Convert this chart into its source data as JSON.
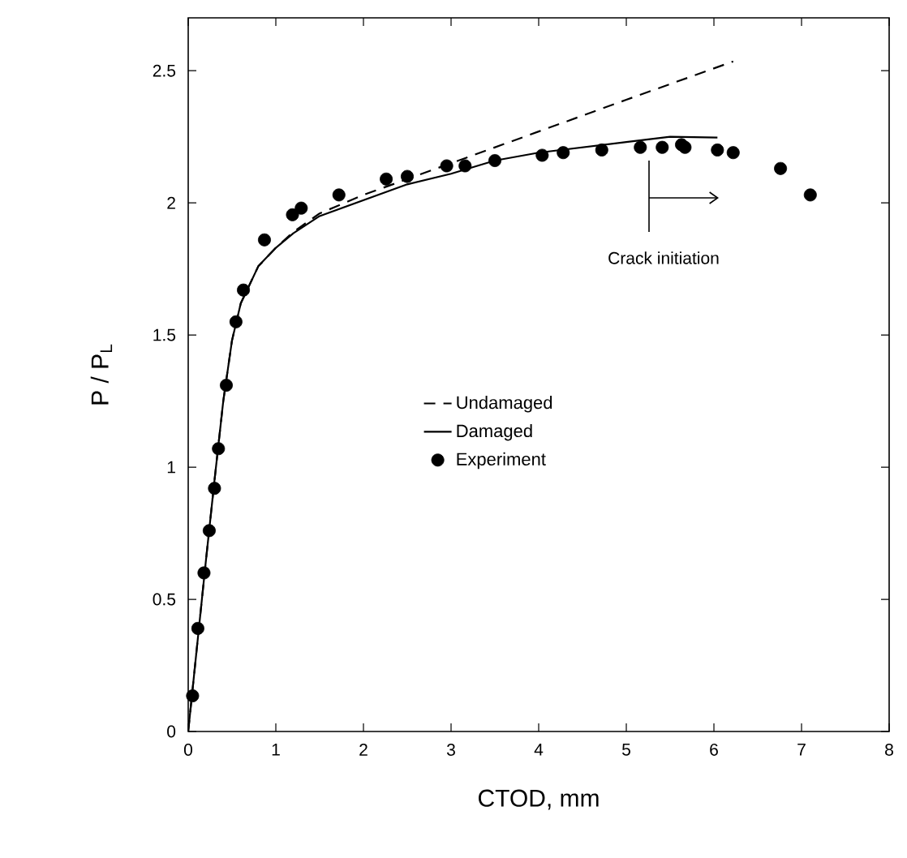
{
  "chart_data": {
    "type": "line",
    "xlabel": "CTOD, mm",
    "ylabel": "P / P$_{L}$",
    "xlim": [
      0,
      8
    ],
    "ylim": [
      0,
      2.7
    ],
    "xticks": [
      0,
      1,
      2,
      3,
      4,
      5,
      6,
      7,
      8
    ],
    "yticks": [
      0,
      0.5,
      1,
      1.5,
      2,
      2.5
    ],
    "grid": false,
    "legend": "center",
    "annotations": [
      "Crack initiation"
    ],
    "series": [
      {
        "name": "Undamaged",
        "type": "line",
        "color": "#000000",
        "line_style": "dashed",
        "marker": "none",
        "x": [
          0,
          0.1,
          0.2,
          0.3,
          0.4,
          0.5,
          0.6,
          0.8,
          1.0,
          1.2,
          1.5,
          2,
          3,
          4,
          5,
          6.22
        ],
        "values": [
          0,
          0.32,
          0.64,
          0.95,
          1.25,
          1.48,
          1.62,
          1.76,
          1.83,
          1.89,
          1.96,
          2.03,
          2.15,
          2.27,
          2.39,
          2.535
        ]
      },
      {
        "name": "Damaged",
        "type": "line",
        "color": "#000000",
        "line_style": "solid",
        "marker": "none",
        "x": [
          0,
          0.1,
          0.2,
          0.3,
          0.4,
          0.5,
          0.6,
          0.8,
          1.0,
          1.2,
          1.5,
          2,
          2.5,
          3,
          3.5,
          4,
          5,
          5.5,
          6.04
        ],
        "values": [
          0,
          0.32,
          0.64,
          0.95,
          1.25,
          1.48,
          1.62,
          1.76,
          1.83,
          1.885,
          1.95,
          2.01,
          2.07,
          2.11,
          2.16,
          2.19,
          2.23,
          2.25,
          2.247
        ]
      },
      {
        "name": "Experiment",
        "type": "scatter",
        "color": "#000000",
        "marker": "circle",
        "x": [
          0.05,
          0.11,
          0.18,
          0.24,
          0.3,
          0.345,
          0.435,
          0.545,
          0.63,
          0.87,
          1.19,
          1.29,
          1.72,
          2.26,
          2.5,
          2.95,
          3.16,
          3.5,
          4.04,
          4.28,
          4.72,
          5.16,
          5.41,
          5.63,
          5.67,
          6.04,
          6.22,
          6.76,
          7.1
        ],
        "values": [
          0.135,
          0.39,
          0.6,
          0.76,
          0.92,
          1.07,
          1.31,
          1.55,
          1.67,
          1.86,
          1.955,
          1.98,
          2.03,
          2.09,
          2.1,
          2.14,
          2.14,
          2.16,
          2.18,
          2.19,
          2.2,
          2.21,
          2.21,
          2.22,
          2.21,
          2.2,
          2.19,
          2.13,
          2.03
        ]
      }
    ]
  }
}
